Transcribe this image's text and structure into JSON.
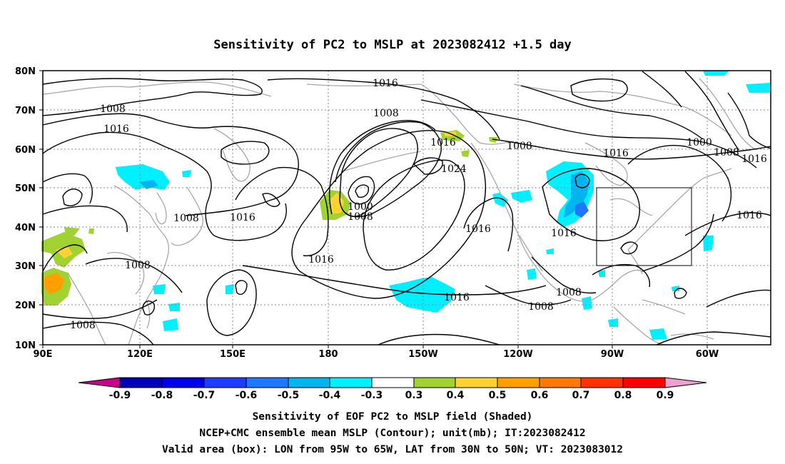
{
  "title": "Sensitivity of PC2 to MSLP at 2023082412 +1.5 day",
  "map": {
    "lon_labels": [
      "90E",
      "120E",
      "150E",
      "180",
      "150W",
      "120W",
      "90W",
      "60W"
    ],
    "lat_labels": [
      "80N",
      "70N",
      "60N",
      "50N",
      "40N",
      "30N",
      "20N",
      "10N"
    ],
    "gridlines": "dotted",
    "valid_box": {
      "lon_from": "95W",
      "lon_to": "65W",
      "lat_from": "30N",
      "lat_to": "50N"
    }
  },
  "contour_labels": [
    {
      "text": "1016"
    },
    {
      "text": "1008"
    },
    {
      "text": "1016"
    },
    {
      "text": "1008"
    },
    {
      "text": "1016"
    },
    {
      "text": "1024"
    },
    {
      "text": "1016"
    },
    {
      "text": "1008"
    },
    {
      "text": "1000"
    },
    {
      "text": "1008"
    },
    {
      "text": "1016"
    },
    {
      "text": "1016"
    },
    {
      "text": "1016"
    },
    {
      "text": "1008"
    },
    {
      "text": "1000"
    },
    {
      "text": "1008"
    },
    {
      "text": "1016"
    },
    {
      "text": "1016"
    },
    {
      "text": "1016"
    },
    {
      "text": "1008"
    },
    {
      "text": "1008"
    },
    {
      "text": "1008"
    },
    {
      "text": "1008"
    },
    {
      "text": "1016"
    }
  ],
  "colorbar": {
    "labels": [
      "-0.9",
      "-0.8",
      "-0.7",
      "-0.6",
      "-0.5",
      "-0.4",
      "-0.3",
      "0.3",
      "0.4",
      "0.5",
      "0.6",
      "0.7",
      "0.8",
      "0.9"
    ],
    "colors": [
      "#c8008c",
      "#0000b4",
      "#0000e6",
      "#1e3cff",
      "#1e78ff",
      "#00b4f0",
      "#00f0ff",
      "#ffffff",
      "#a0d232",
      "#ffd232",
      "#ffa000",
      "#ff7800",
      "#ff3200",
      "#ff0000",
      "#f0a0d0"
    ]
  },
  "captions": [
    "Sensitivity of EOF PC2 to MSLP field (Shaded)",
    "NCEP+CMC ensemble mean MSLP (Contour); unit(mb); IT:2023082412",
    "Valid area (box): LON from 95W to 65W, LAT from 30N to 50N; VT: 2023083012"
  ]
}
